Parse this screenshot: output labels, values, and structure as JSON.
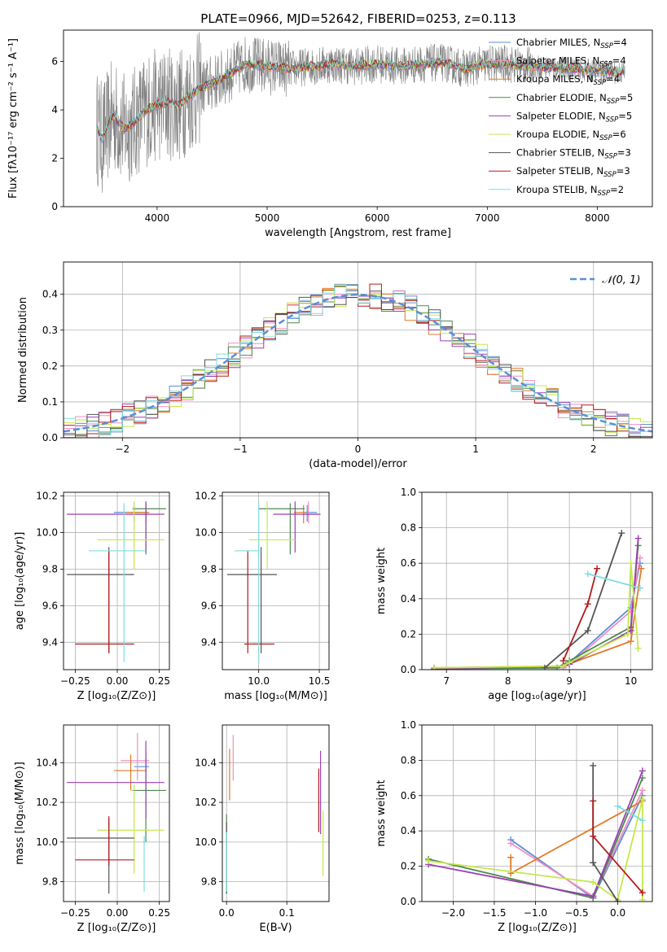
{
  "figure_title": "PLATE=0966, MJD=52642, FIBERID=0253, z=0.113",
  "colors": {
    "Chabrier MILES": "#5b8fd8",
    "Salpeter MILES": "#f28ec4",
    "Kroupa MILES": "#e07b28",
    "Chabrier ELODIE": "#4e8a4e",
    "Salpeter ELODIE": "#9a3fb0",
    "Kroupa ELODIE": "#c4e84a",
    "Chabrier STELIB": "#555555",
    "Salpeter STELIB": "#b31b1b",
    "Kroupa STELIB": "#7fdde0",
    "data": "#808080",
    "normal": "#5b8fd8"
  },
  "legend_models": [
    {
      "label": "Chabrier MILES, N",
      "sub": "SSP",
      "suffix": "=4"
    },
    {
      "label": "Salpeter MILES, N",
      "sub": "SSP",
      "suffix": "=4"
    },
    {
      "label": "Kroupa MILES, N",
      "sub": "SSP",
      "suffix": "=4"
    },
    {
      "label": "Chabrier ELODIE, N",
      "sub": "SSP",
      "suffix": "=5"
    },
    {
      "label": "Salpeter ELODIE, N",
      "sub": "SSP",
      "suffix": "=5"
    },
    {
      "label": "Kroupa ELODIE, N",
      "sub": "SSP",
      "suffix": "=6"
    },
    {
      "label": "Chabrier STELIB, N",
      "sub": "SSP",
      "suffix": "=3"
    },
    {
      "label": "Salpeter STELIB, N",
      "sub": "SSP",
      "suffix": "=3"
    },
    {
      "label": "Kroupa STELIB, N",
      "sub": "SSP",
      "suffix": "=2"
    }
  ],
  "chart_data": [
    {
      "id": "spectrum",
      "type": "line",
      "xlabel": "wavelength [Angstrom, rest frame]",
      "ylabel": "Flux [fλ10⁻¹⁷ erg cm⁻² s⁻¹ A⁻¹]",
      "xlim": [
        3150,
        8500
      ],
      "ylim": [
        0,
        7.3
      ],
      "xticks": [
        4000,
        5000,
        6000,
        7000,
        8000
      ],
      "yticks": [
        0,
        2,
        4,
        6
      ],
      "legend": "upper right",
      "grid": false,
      "model_x": [
        3450,
        3500,
        3600,
        3700,
        3800,
        3900,
        4000,
        4100,
        4200,
        4300,
        4400,
        4500,
        4600,
        4800,
        5000,
        5200,
        5400,
        5600,
        5800,
        6000,
        6200,
        6400,
        6600,
        6800,
        7000,
        7200,
        7400,
        7600,
        7800,
        8000,
        8250
      ],
      "model_y": [
        3.3,
        2.8,
        3.8,
        3.2,
        3.5,
        4.0,
        4.2,
        4.3,
        4.2,
        4.6,
        4.9,
        5.1,
        5.3,
        5.9,
        5.8,
        5.7,
        5.8,
        5.9,
        5.8,
        5.9,
        5.8,
        5.9,
        5.95,
        5.7,
        5.9,
        5.9,
        5.8,
        5.75,
        5.7,
        5.6,
        5.55
      ]
    },
    {
      "id": "residuals",
      "type": "histogram",
      "xlabel": "(data-model)/error",
      "ylabel": "Normed distribution",
      "xlim": [
        -2.5,
        2.5
      ],
      "ylim": [
        0,
        0.49
      ],
      "xticks": [
        -2,
        -1,
        0,
        1,
        2
      ],
      "yticks": [
        0.0,
        0.1,
        0.2,
        0.3,
        0.4
      ],
      "grid": true,
      "legend": "upper right",
      "normal_label": "𝒩(0, 1)",
      "bin_width": 0.1
    },
    {
      "id": "age-vs-Z",
      "type": "errorbar",
      "xlabel": "Z [log₁₀(Z/Z⊙)]",
      "ylabel": "age  [log₁₀(age/yr)]",
      "xlim": [
        -0.32,
        0.31
      ],
      "ylim": [
        9.25,
        10.22
      ],
      "xticks": [
        -0.25,
        0.0,
        0.25
      ],
      "xticklabels": [
        "−0.25",
        "0.00",
        "0.25"
      ],
      "yticks": [
        9.4,
        9.6,
        9.8,
        10.0,
        10.2
      ],
      "grid": true,
      "points": [
        {
          "model": "Chabrier MILES",
          "x": 0.1,
          "y": 10.11,
          "xerr": [
            0.12,
            0.09
          ],
          "yerr": [
            0.05,
            0.04
          ]
        },
        {
          "model": "Salpeter MILES",
          "x": 0.17,
          "y": 10.1,
          "xerr": [
            0.1,
            0.02
          ],
          "yerr": [
            0.05,
            0.07
          ]
        },
        {
          "model": "Kroupa MILES",
          "x": 0.17,
          "y": 10.11,
          "xerr": [
            0.12,
            0.02
          ],
          "yerr": [
            0.06,
            0.04
          ]
        },
        {
          "model": "Chabrier ELODIE",
          "x": 0.17,
          "y": 10.13,
          "xerr": [
            0.08,
            0.12
          ],
          "yerr": [
            0.25,
            0.03
          ]
        },
        {
          "model": "Salpeter ELODIE",
          "x": 0.17,
          "y": 10.1,
          "xerr": [
            0.47,
            0.11
          ],
          "yerr": [
            0.21,
            0.07
          ]
        },
        {
          "model": "Kroupa ELODIE",
          "x": 0.1,
          "y": 9.96,
          "xerr": [
            0.22,
            0.18
          ],
          "yerr": [
            0.16,
            0.21
          ]
        },
        {
          "model": "Chabrier STELIB",
          "x": -0.05,
          "y": 9.77,
          "xerr": [
            0.25,
            0.15
          ],
          "yerr": [
            0.43,
            0.15
          ]
        },
        {
          "model": "Salpeter STELIB",
          "x": -0.05,
          "y": 9.39,
          "xerr": [
            0.2,
            0.15
          ],
          "yerr": [
            0.05,
            0.51
          ]
        },
        {
          "model": "Kroupa STELIB",
          "x": 0.04,
          "y": 9.9,
          "xerr": [
            0.21,
            0.13
          ],
          "yerr": [
            0.61,
            0.26
          ]
        }
      ]
    },
    {
      "id": "age-vs-mass",
      "type": "errorbar",
      "xlabel": "mass [log₁₀(M/M⊙)]",
      "ylabel": "",
      "xlim": [
        9.7,
        10.58
      ],
      "ylim": [
        9.25,
        10.22
      ],
      "xticks": [
        10.0,
        10.5
      ],
      "xticklabels": [
        "10.0",
        "10.5"
      ],
      "yticks": [
        9.4,
        9.6,
        9.8,
        10.0,
        10.2
      ],
      "grid": true,
      "points": [
        {
          "model": "Chabrier MILES",
          "x": 10.4,
          "y": 10.11,
          "xerr": [
            0.03,
            0.08
          ],
          "yerr": [
            0.05,
            0.04
          ]
        },
        {
          "model": "Salpeter MILES",
          "x": 10.41,
          "y": 10.1,
          "xerr": [
            0.05,
            0.08
          ],
          "yerr": [
            0.05,
            0.07
          ]
        },
        {
          "model": "Kroupa MILES",
          "x": 10.37,
          "y": 10.11,
          "xerr": [
            0.08,
            0.02
          ],
          "yerr": [
            0.06,
            0.04
          ]
        },
        {
          "model": "Chabrier ELODIE",
          "x": 10.26,
          "y": 10.13,
          "xerr": [
            0.26,
            0.12
          ],
          "yerr": [
            0.25,
            0.03
          ]
        },
        {
          "model": "Salpeter ELODIE",
          "x": 10.3,
          "y": 10.1,
          "xerr": [
            0.18,
            0.21
          ],
          "yerr": [
            0.21,
            0.07
          ]
        },
        {
          "model": "Kroupa ELODIE",
          "x": 10.07,
          "y": 9.96,
          "xerr": [
            0.15,
            0.23
          ],
          "yerr": [
            0.16,
            0.21
          ]
        },
        {
          "model": "Chabrier STELIB",
          "x": 10.02,
          "y": 9.77,
          "xerr": [
            0.28,
            0.13
          ],
          "yerr": [
            0.43,
            0.15
          ]
        },
        {
          "model": "Salpeter STELIB",
          "x": 9.91,
          "y": 9.39,
          "xerr": [
            0.03,
            0.22
          ],
          "yerr": [
            0.05,
            0.51
          ]
        },
        {
          "model": "Kroupa STELIB",
          "x": 10.0,
          "y": 9.9,
          "xerr": [
            0.2,
            0.03
          ],
          "yerr": [
            0.61,
            0.26
          ]
        }
      ]
    },
    {
      "id": "weight-vs-age",
      "type": "line",
      "xlabel": "age  [log₁₀(age/yr)]",
      "ylabel": "mass weight",
      "xlim": [
        6.6,
        10.35
      ],
      "ylim": [
        0.0,
        1.0
      ],
      "xticks": [
        7,
        8,
        9,
        10
      ],
      "yticks": [
        0.0,
        0.2,
        0.4,
        0.6,
        0.8,
        1.0
      ],
      "grid": true,
      "series": [
        {
          "name": "Chabrier MILES",
          "x": [
            8.9,
            9.0,
            10.0,
            10.15
          ],
          "y": [
            0.01,
            0.04,
            0.35,
            0.6
          ]
        },
        {
          "name": "Salpeter MILES",
          "x": [
            8.9,
            9.0,
            10.0,
            10.15
          ],
          "y": [
            0.01,
            0.03,
            0.33,
            0.63
          ]
        },
        {
          "name": "Kroupa MILES",
          "x": [
            6.8,
            8.9,
            10.0,
            10.17
          ],
          "y": [
            0.01,
            0.02,
            0.16,
            0.57
          ]
        },
        {
          "name": "Chabrier ELODIE",
          "x": [
            6.8,
            8.8,
            9.0,
            10.0,
            10.12
          ],
          "y": [
            0.005,
            0.01,
            0.05,
            0.24,
            0.7
          ]
        },
        {
          "name": "Salpeter ELODIE",
          "x": [
            6.8,
            8.9,
            9.0,
            10.0,
            10.12
          ],
          "y": [
            0.005,
            0.02,
            0.03,
            0.22,
            0.74
          ]
        },
        {
          "name": "Kroupa ELODIE",
          "x": [
            6.8,
            8.9,
            9.0,
            9.95,
            10.0,
            10.12
          ],
          "y": [
            0.01,
            0.02,
            0.04,
            0.2,
            0.6,
            0.12
          ]
        },
        {
          "name": "Chabrier STELIB",
          "x": [
            8.6,
            9.3,
            9.85
          ],
          "y": [
            0.01,
            0.22,
            0.77
          ]
        },
        {
          "name": "Salpeter STELIB",
          "x": [
            8.9,
            9.3,
            9.45
          ],
          "y": [
            0.05,
            0.37,
            0.57
          ]
        },
        {
          "name": "Kroupa STELIB",
          "x": [
            9.3,
            10.15
          ],
          "y": [
            0.54,
            0.46
          ]
        }
      ]
    },
    {
      "id": "mass-vs-Z",
      "type": "errorbar",
      "xlabel": "Z [log₁₀(Z/Z⊙)]",
      "ylabel": "mass [log₁₀(M/M⊙)]",
      "xlim": [
        -0.32,
        0.31
      ],
      "ylim": [
        9.7,
        10.59
      ],
      "xticks": [
        -0.25,
        0.0,
        0.25
      ],
      "xticklabels": [
        "−0.25",
        "0.00",
        "0.25"
      ],
      "yticks": [
        9.8,
        10.0,
        10.2,
        10.4
      ],
      "grid": true,
      "points": [
        {
          "model": "Chabrier MILES",
          "x": 0.17,
          "y": 10.38,
          "xerr": [
            0.07,
            0.02
          ],
          "yerr": [
            0.03,
            0.07
          ]
        },
        {
          "model": "Salpeter MILES",
          "x": 0.12,
          "y": 10.41,
          "xerr": [
            0.1,
            0.07
          ],
          "yerr": [
            0.1,
            0.14
          ]
        },
        {
          "model": "Kroupa MILES",
          "x": 0.08,
          "y": 10.36,
          "xerr": [
            0.1,
            0.09
          ],
          "yerr": [
            0.1,
            0.08
          ]
        },
        {
          "model": "Chabrier ELODIE",
          "x": 0.17,
          "y": 10.26,
          "xerr": [
            0.08,
            0.12
          ],
          "yerr": [
            0.26,
            0.12
          ]
        },
        {
          "model": "Salpeter ELODIE",
          "x": 0.17,
          "y": 10.3,
          "xerr": [
            0.47,
            0.11
          ],
          "yerr": [
            0.18,
            0.21
          ]
        },
        {
          "model": "Kroupa ELODIE",
          "x": 0.1,
          "y": 10.06,
          "xerr": [
            0.22,
            0.18
          ],
          "yerr": [
            0.22,
            0.23
          ]
        },
        {
          "model": "Chabrier STELIB",
          "x": -0.05,
          "y": 10.02,
          "xerr": [
            0.25,
            0.15
          ],
          "yerr": [
            0.28,
            0.1
          ]
        },
        {
          "model": "Salpeter STELIB",
          "x": -0.05,
          "y": 9.91,
          "xerr": [
            0.2,
            0.15
          ],
          "yerr": [
            0.03,
            0.22
          ]
        },
        {
          "model": "Kroupa STELIB",
          "x": 0.16,
          "y": 10.0,
          "xerr": [
            0.01,
            0.02
          ],
          "yerr": [
            0.25,
            0.03
          ]
        }
      ]
    },
    {
      "id": "mass-vs-ebv",
      "type": "errorbar",
      "xlabel": "E(B-V)",
      "ylabel": "",
      "xlim": [
        -0.007,
        0.17
      ],
      "ylim": [
        9.7,
        10.59
      ],
      "xticks": [
        0.0,
        0.1
      ],
      "xticklabels": [
        "0.0",
        "0.1"
      ],
      "yticks": [
        9.8,
        10.0,
        10.2,
        10.4
      ],
      "grid": true,
      "points": [
        {
          "model": "Salpeter MILES",
          "x": 0.011,
          "y": 10.4,
          "xerr": [
            0,
            0
          ],
          "yerr": [
            0.09,
            0.14
          ]
        },
        {
          "model": "Kroupa MILES",
          "x": 0.005,
          "y": 10.35,
          "xerr": [
            0,
            0
          ],
          "yerr": [
            0.14,
            0.12
          ]
        },
        {
          "model": "Chabrier ELODIE",
          "x": 0.0,
          "y": 10.0,
          "xerr": [
            0,
            0
          ],
          "yerr": [
            0.26,
            0.14
          ]
        },
        {
          "model": "Salpeter ELODIE",
          "x": 0.156,
          "y": 10.3,
          "xerr": [
            0,
            0
          ],
          "yerr": [
            0.26,
            0.16
          ]
        },
        {
          "model": "Kroupa ELODIE",
          "x": 0.16,
          "y": 10.06,
          "xerr": [
            0,
            0
          ],
          "yerr": [
            0.23,
            0.1
          ]
        },
        {
          "model": "Chabrier STELIB",
          "x": 0.0,
          "y": 10.0,
          "xerr": [
            0,
            0
          ],
          "yerr": [
            0.26,
            0.1
          ]
        },
        {
          "model": "Salpeter STELIB",
          "x": 0.153,
          "y": 10.18,
          "xerr": [
            0,
            0
          ],
          "yerr": [
            0.13,
            0.19
          ]
        },
        {
          "model": "Kroupa STELIB",
          "x": 0.0,
          "y": 10.0,
          "xerr": [
            0,
            0
          ],
          "yerr": [
            0.25,
            0.05
          ]
        }
      ]
    },
    {
      "id": "weight-vs-Z",
      "type": "line",
      "xlabel": "Z [log₁₀(Z/Z⊙)]",
      "ylabel": "mass weight",
      "xlim": [
        -2.38,
        0.42
      ],
      "ylim": [
        0.0,
        1.0
      ],
      "xticks": [
        -2.0,
        -1.5,
        -1.0,
        -0.5,
        0.0
      ],
      "xticklabels": [
        "−2.0",
        "−1.5",
        "−1.0",
        "−0.5",
        "0.0"
      ],
      "yticks": [
        0.0,
        0.2,
        0.4,
        0.6,
        0.8,
        1.0
      ],
      "grid": true,
      "series": [
        {
          "name": "Chabrier MILES",
          "x": [
            -1.3,
            -0.3,
            0.3
          ],
          "y": [
            0.35,
            0.02,
            0.6
          ]
        },
        {
          "name": "Salpeter MILES",
          "x": [
            -1.3,
            -0.3,
            0.3
          ],
          "y": [
            0.33,
            0.03,
            0.63
          ]
        },
        {
          "name": "Kroupa MILES",
          "x": [
            -1.3,
            -1.3,
            0.3
          ],
          "y": [
            0.25,
            0.16,
            0.57
          ]
        },
        {
          "name": "Chabrier ELODIE",
          "x": [
            -2.3,
            -0.3,
            0.3
          ],
          "y": [
            0.24,
            0.02,
            0.7
          ]
        },
        {
          "name": "Salpeter ELODIE",
          "x": [
            -2.3,
            -0.3,
            0.3
          ],
          "y": [
            0.21,
            0.03,
            0.74
          ]
        },
        {
          "name": "Kroupa ELODIE",
          "x": [
            -2.3,
            -0.3,
            0.0,
            0.3,
            0.3
          ],
          "y": [
            0.23,
            0.11,
            0.01,
            0.58,
            0.01
          ]
        },
        {
          "name": "Chabrier STELIB",
          "x": [
            -0.3,
            -0.3,
            0.0
          ],
          "y": [
            0.77,
            0.22,
            0.0
          ]
        },
        {
          "name": "Salpeter STELIB",
          "x": [
            -0.3,
            -0.3,
            0.3
          ],
          "y": [
            0.57,
            0.37,
            0.05
          ]
        },
        {
          "name": "Kroupa STELIB",
          "x": [
            0.0,
            0.3
          ],
          "y": [
            0.54,
            0.46
          ]
        }
      ]
    }
  ]
}
